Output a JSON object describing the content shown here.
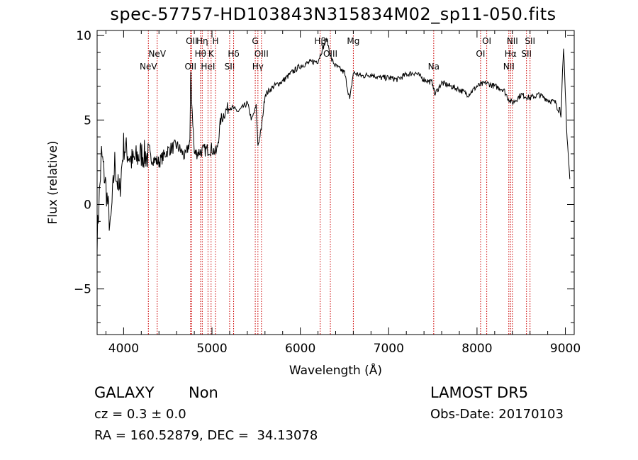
{
  "header": {
    "title": "spec-57757-HD103843N315834M02_sp11-050.fits"
  },
  "info": {
    "class": "GALAXY",
    "subclass": "Non",
    "survey": "LAMOST DR5",
    "cz": "cz = 0.3 ± 0.0",
    "obs_date": "Obs-Date: 20170103",
    "coords": "RA = 160.52879, DEC =  34.13078"
  },
  "chart_data": {
    "type": "line",
    "title": "spec-57757-HD103843N315834M02_sp11-050.fits",
    "xlabel": "Wavelength (Å)",
    "ylabel": "Flux (relative)",
    "xlim": [
      3700,
      9100
    ],
    "ylim": [
      -7.7,
      10.3
    ],
    "xticks": [
      4000,
      5000,
      6000,
      7000,
      8000,
      9000
    ],
    "yticks": [
      -5,
      0,
      5,
      10
    ],
    "yticklabels": [
      "−5",
      "0",
      "5",
      "10"
    ],
    "series": [
      {
        "x": [
          3700,
          3750,
          3800,
          3850,
          3900,
          3950,
          4000,
          4100,
          4200,
          4300,
          4400,
          4500,
          4600,
          4700,
          4750,
          4760,
          4800,
          4900,
          5000,
          5050,
          5100,
          5150,
          5200,
          5300,
          5400,
          5450,
          5500,
          5520,
          5560,
          5600,
          5700,
          5800,
          5900,
          6000,
          6100,
          6200,
          6250,
          6300,
          6350,
          6400,
          6500,
          6560,
          6600,
          6700,
          6800,
          6900,
          7000,
          7100,
          7200,
          7300,
          7400,
          7500,
          7520,
          7600,
          7700,
          7800,
          7900,
          8000,
          8100,
          8200,
          8300,
          8350,
          8400,
          8500,
          8600,
          8700,
          8800,
          8900,
          8950,
          8980,
          9000,
          9020,
          9050
        ],
        "y": [
          -2.0,
          3.0,
          1.0,
          -1.5,
          2.5,
          0.5,
          3.5,
          2.5,
          3.0,
          2.8,
          2.5,
          3.2,
          3.5,
          2.8,
          3.8,
          7.5,
          3.0,
          3.2,
          3.3,
          3.0,
          5.0,
          5.5,
          5.8,
          5.5,
          6.0,
          5.0,
          5.8,
          3.5,
          4.5,
          6.5,
          7.0,
          7.3,
          7.8,
          8.2,
          8.4,
          8.5,
          9.2,
          9.8,
          8.6,
          8.2,
          7.8,
          6.2,
          7.8,
          7.6,
          7.7,
          7.5,
          7.5,
          7.4,
          7.7,
          7.8,
          7.4,
          7.2,
          6.5,
          7.2,
          7.0,
          6.8,
          6.5,
          7.0,
          7.2,
          7.0,
          6.8,
          6.3,
          6.0,
          6.5,
          6.3,
          6.5,
          6.2,
          6.0,
          5.5,
          9.0,
          6.5,
          4.0,
          1.5
        ]
      }
    ],
    "lines": [
      {
        "x": 4280,
        "label": "NeV",
        "row": 2
      },
      {
        "x": 4380,
        "label": "NeV",
        "row": 1
      },
      {
        "x": 4757,
        "label": "OII",
        "row": 2
      },
      {
        "x": 4770,
        "label": "OII",
        "row": 0
      },
      {
        "x": 4870,
        "label": "Hθ",
        "row": 1
      },
      {
        "x": 4890,
        "label": "Hη",
        "row": 0
      },
      {
        "x": 4955,
        "label": "HeI",
        "row": 2
      },
      {
        "x": 4990,
        "label": "K",
        "row": 1
      },
      {
        "x": 5040,
        "label": "H",
        "row": 0
      },
      {
        "x": 5200,
        "label": "SII",
        "row": 2
      },
      {
        "x": 5245,
        "label": "Hδ",
        "row": 1
      },
      {
        "x": 5490,
        "label": "G",
        "row": 0
      },
      {
        "x": 5520,
        "label": "Hγ",
        "row": 2
      },
      {
        "x": 5560,
        "label": "OIII",
        "row": 1
      },
      {
        "x": 6225,
        "label": "Hβ",
        "row": 0
      },
      {
        "x": 6340,
        "label": "OIII",
        "row": 1
      },
      {
        "x": 6600,
        "label": "Mg",
        "row": 0
      },
      {
        "x": 7510,
        "label": "Na",
        "row": 2
      },
      {
        "x": 8040,
        "label": "OI",
        "row": 1
      },
      {
        "x": 8110,
        "label": "OI",
        "row": 0
      },
      {
        "x": 8360,
        "label": "NII",
        "row": 2
      },
      {
        "x": 8380,
        "label": "Hα",
        "row": 1
      },
      {
        "x": 8400,
        "label": "NII",
        "row": 0
      },
      {
        "x": 8560,
        "label": "SII",
        "row": 1
      },
      {
        "x": 8600,
        "label": "SII",
        "row": 0
      }
    ],
    "colors": {
      "spectrum": "#000000",
      "lines": "#cc0000",
      "frame": "#000000"
    },
    "grid": false
  }
}
